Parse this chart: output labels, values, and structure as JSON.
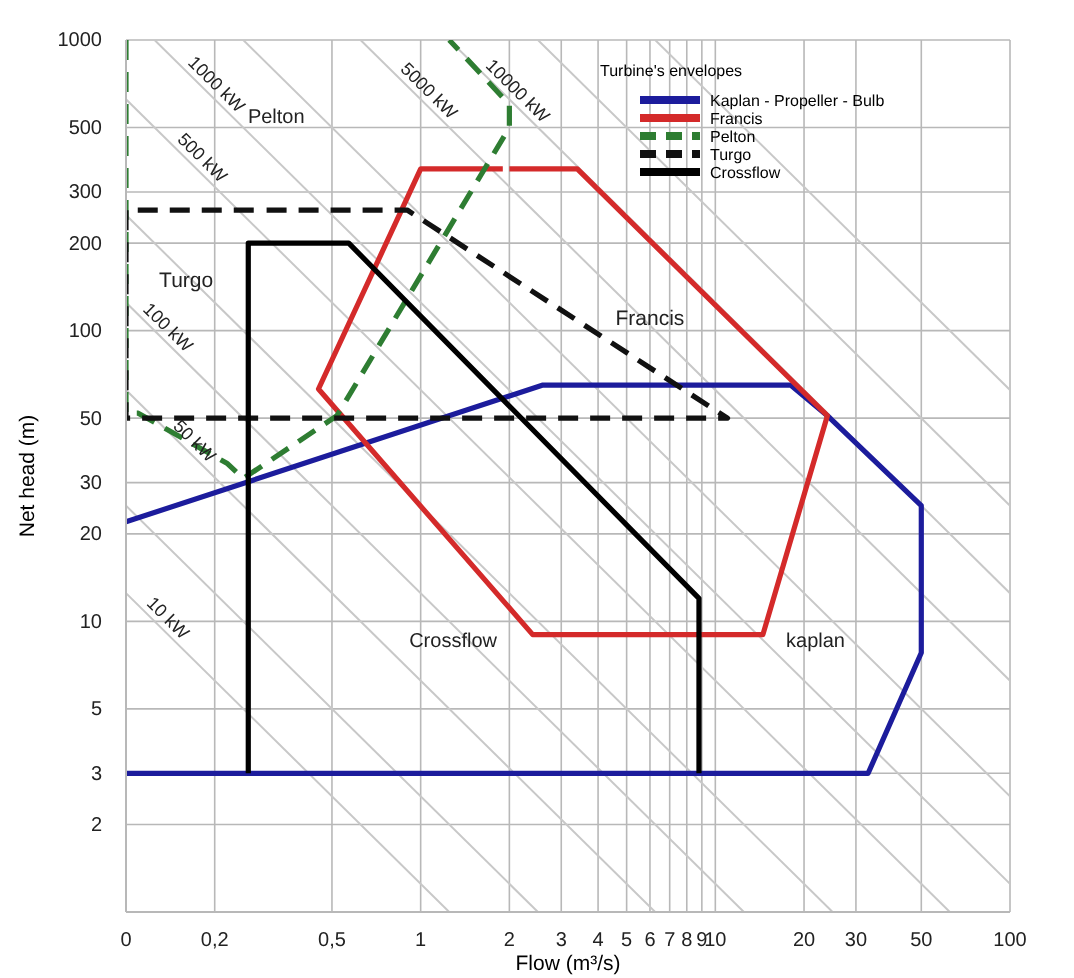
{
  "chart_data": {
    "type": "line",
    "xlabel": "Flow (m³/s)",
    "ylabel": "Net head (m)",
    "legend_title": "Turbine's envelopes",
    "log": "xy",
    "grid": true,
    "legend": "top right",
    "xlim": [
      0.1,
      100
    ],
    "ylim": [
      1,
      1000
    ],
    "xticks": [
      {
        "value": 0.1,
        "label": "0"
      },
      {
        "value": 0.2,
        "label": "0,2"
      },
      {
        "value": 0.5,
        "label": "0,5"
      },
      1,
      2,
      3,
      4,
      5,
      6,
      7,
      8,
      9,
      10,
      20,
      30,
      50,
      100
    ],
    "yticks": [
      {
        "value": 1,
        "label": null
      },
      2,
      3,
      5,
      10,
      20,
      30,
      50,
      100,
      200,
      300,
      500,
      1000
    ],
    "series": [
      {
        "color": "#c8c8c8",
        "x": [
          0.1,
          1.25
        ],
        "values": [
          12.5,
          1
        ]
      },
      {
        "color": "#c8c8c8",
        "x": [
          0.1,
          2.5
        ],
        "values": [
          25,
          1
        ]
      },
      {
        "color": "#c8c8c8",
        "x": [
          0.1,
          6.25
        ],
        "values": [
          62.5,
          1
        ]
      },
      {
        "color": "#c8c8c8",
        "x": [
          0.1,
          12.5
        ],
        "values": [
          125,
          1
        ]
      },
      {
        "color": "#c8c8c8",
        "x": [
          0.1,
          25
        ],
        "values": [
          250,
          1
        ]
      },
      {
        "color": "#c8c8c8",
        "x": [
          0.1,
          62.5
        ],
        "values": [
          625,
          1
        ]
      },
      {
        "color": "#c8c8c8",
        "x": [
          0.125,
          100
        ],
        "values": [
          1000,
          1.25
        ]
      },
      {
        "color": "#c8c8c8",
        "x": [
          0.25,
          100
        ],
        "values": [
          1000,
          2.5
        ]
      },
      {
        "color": "#c8c8c8",
        "x": [
          0.625,
          100
        ],
        "values": [
          1000,
          6.25
        ]
      },
      {
        "color": "#c8c8c8",
        "x": [
          1.25,
          100
        ],
        "values": [
          1000,
          12.5
        ]
      },
      {
        "color": "#c8c8c8",
        "x": [
          2.5,
          100
        ],
        "values": [
          1000,
          25
        ]
      },
      {
        "color": "#c8c8c8",
        "x": [
          6.25,
          100
        ],
        "values": [
          1000,
          62.5
        ]
      },
      {
        "name": "Kaplan - Propeller - Bulb",
        "color": "#1c1c9c",
        "line_style": "solid",
        "x": [
          0.1,
          2.6,
          18,
          24,
          50,
          50,
          33,
          0.1
        ],
        "values": [
          22,
          65,
          65,
          51,
          25,
          7.8,
          3,
          3
        ]
      },
      {
        "name": "Francis",
        "color": "#d42a2a",
        "line_style": "solid",
        "x": [
          2,
          3.4,
          24,
          14.5,
          2.4,
          0.45,
          1,
          1.9
        ],
        "values": [
          360,
          360,
          51,
          9,
          9,
          63,
          360,
          360
        ]
      },
      {
        "name": "Pelton",
        "color": "#2e7d32",
        "line_style": "dashed",
        "x": [
          0.1,
          0.1,
          0.11,
          0.22,
          0.25,
          0.52,
          2,
          2,
          1.25
        ],
        "values": [
          1000,
          52,
          52,
          35,
          31,
          51,
          500,
          600,
          1000
        ]
      },
      {
        "name": "Turgo",
        "color": "#111111",
        "line_style": "dashed",
        "x": [
          0.3,
          0.9,
          11,
          0.1,
          0.1,
          0.28
        ],
        "values": [
          260,
          260,
          50,
          50,
          260,
          260
        ]
      },
      {
        "name": "Crossflow",
        "color": "#000000",
        "line_style": "solid",
        "x": [
          0.26,
          0.26,
          0.57,
          8.8,
          8.8
        ],
        "values": [
          3,
          200,
          200,
          12,
          3
        ]
      }
    ],
    "annotations": [
      "Pelton",
      {
        "text": "Turgo",
        "x": 0.16,
        "y": 148
      },
      {
        "text": "Francis",
        "x": 6,
        "y": 110
      },
      "Crossflow",
      "kaplan",
      {
        "text": "10 kW",
        "x": 0.13,
        "y": 9.6
      },
      {
        "text": "50 kW",
        "x": 0.16,
        "y": 39
      },
      {
        "text": "100 kW",
        "x": 0.13,
        "y": 96
      },
      {
        "text": "500 kW",
        "x": 0.17,
        "y": 368
      },
      {
        "text": "1000 kW",
        "x": 0.19,
        "y": 658
      },
      {
        "text": "5000 kW",
        "x": 1,
        "y": 625
      },
      {
        "text": "10000 kW",
        "x": 2,
        "y": 625
      }
    ]
  }
}
